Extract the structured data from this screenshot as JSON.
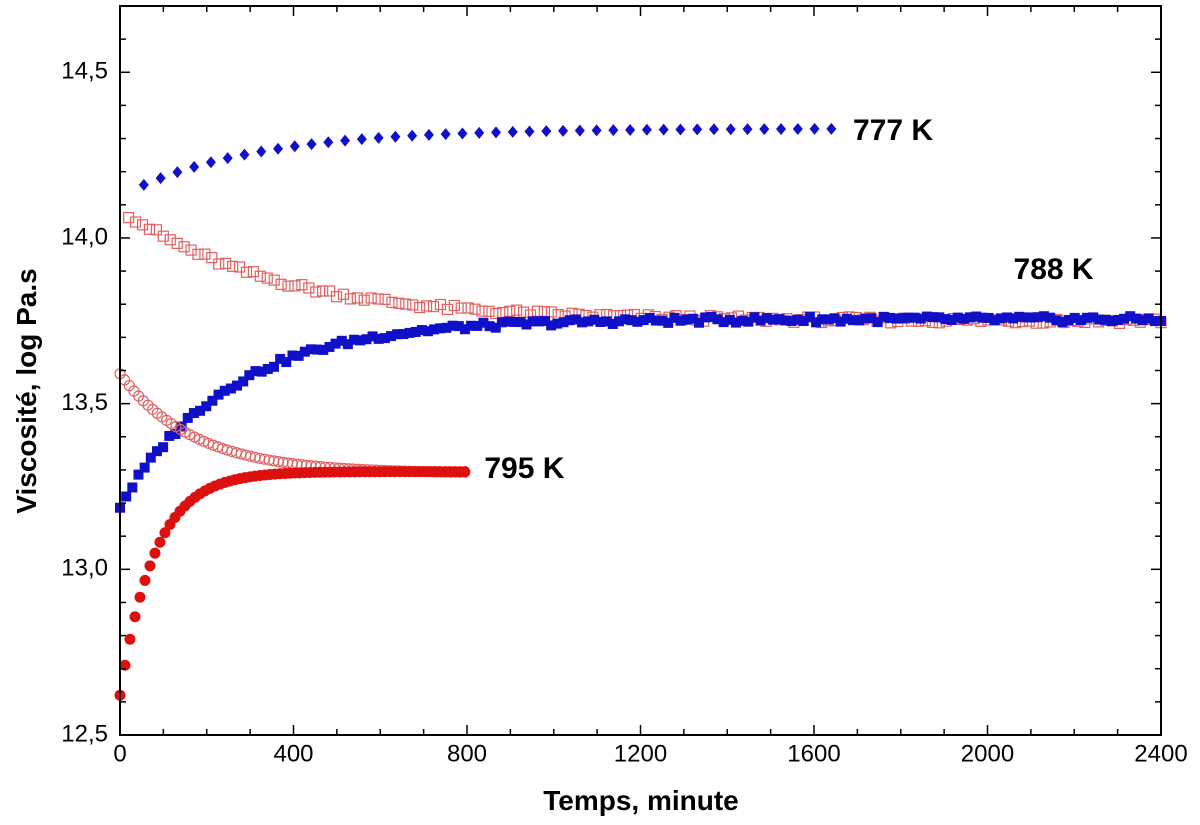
{
  "chart_data": {
    "type": "scatter",
    "title": "",
    "xlabel": "Temps, minute",
    "ylabel": "Viscosité, log Pa.s",
    "xlim": [
      0,
      2400
    ],
    "ylim": [
      12.5,
      14.7
    ],
    "x_ticks": [
      "0",
      "400",
      "800",
      "1200",
      "1600",
      "2000",
      "2400"
    ],
    "y_ticks": [
      "12,5",
      "13,0",
      "13,5",
      "14,0",
      "14,5"
    ],
    "grid": false,
    "legend": "none",
    "annotations": [
      {
        "text": "777 K",
        "x": 1690,
        "y": 14.32
      },
      {
        "text": "788 K",
        "x": 2060,
        "y": 13.9
      },
      {
        "text": "795 K",
        "x": 840,
        "y": 13.3
      }
    ],
    "series": [
      {
        "marker": "diamond-filled",
        "color": "#1010c8",
        "x_start": 55,
        "x_end": 1640,
        "count": 42,
        "y_start": 14.16,
        "y_end": 14.33,
        "tau": 300
      },
      {
        "marker": "square-open",
        "color": "#e06060",
        "x_start": 20,
        "x_end": 2400,
        "count": 150,
        "y_start": 14.07,
        "y_end": 13.75,
        "tau": 350
      },
      {
        "marker": "square-filled",
        "color": "#1010c8",
        "x_start": 0,
        "x_end": 2400,
        "count": 170,
        "y_start": 13.19,
        "y_end": 13.755,
        "tau": 250
      },
      {
        "marker": "circle-open",
        "color": "#e06060",
        "x_start": 0,
        "x_end": 795,
        "count": 75,
        "y_start": 13.59,
        "y_end": 13.29,
        "tau": 170
      },
      {
        "marker": "circle-filled",
        "color": "#dd1010",
        "x_start": 0,
        "x_end": 795,
        "count": 70,
        "y_start": 12.62,
        "y_end": 13.295,
        "tau": 80
      }
    ]
  }
}
